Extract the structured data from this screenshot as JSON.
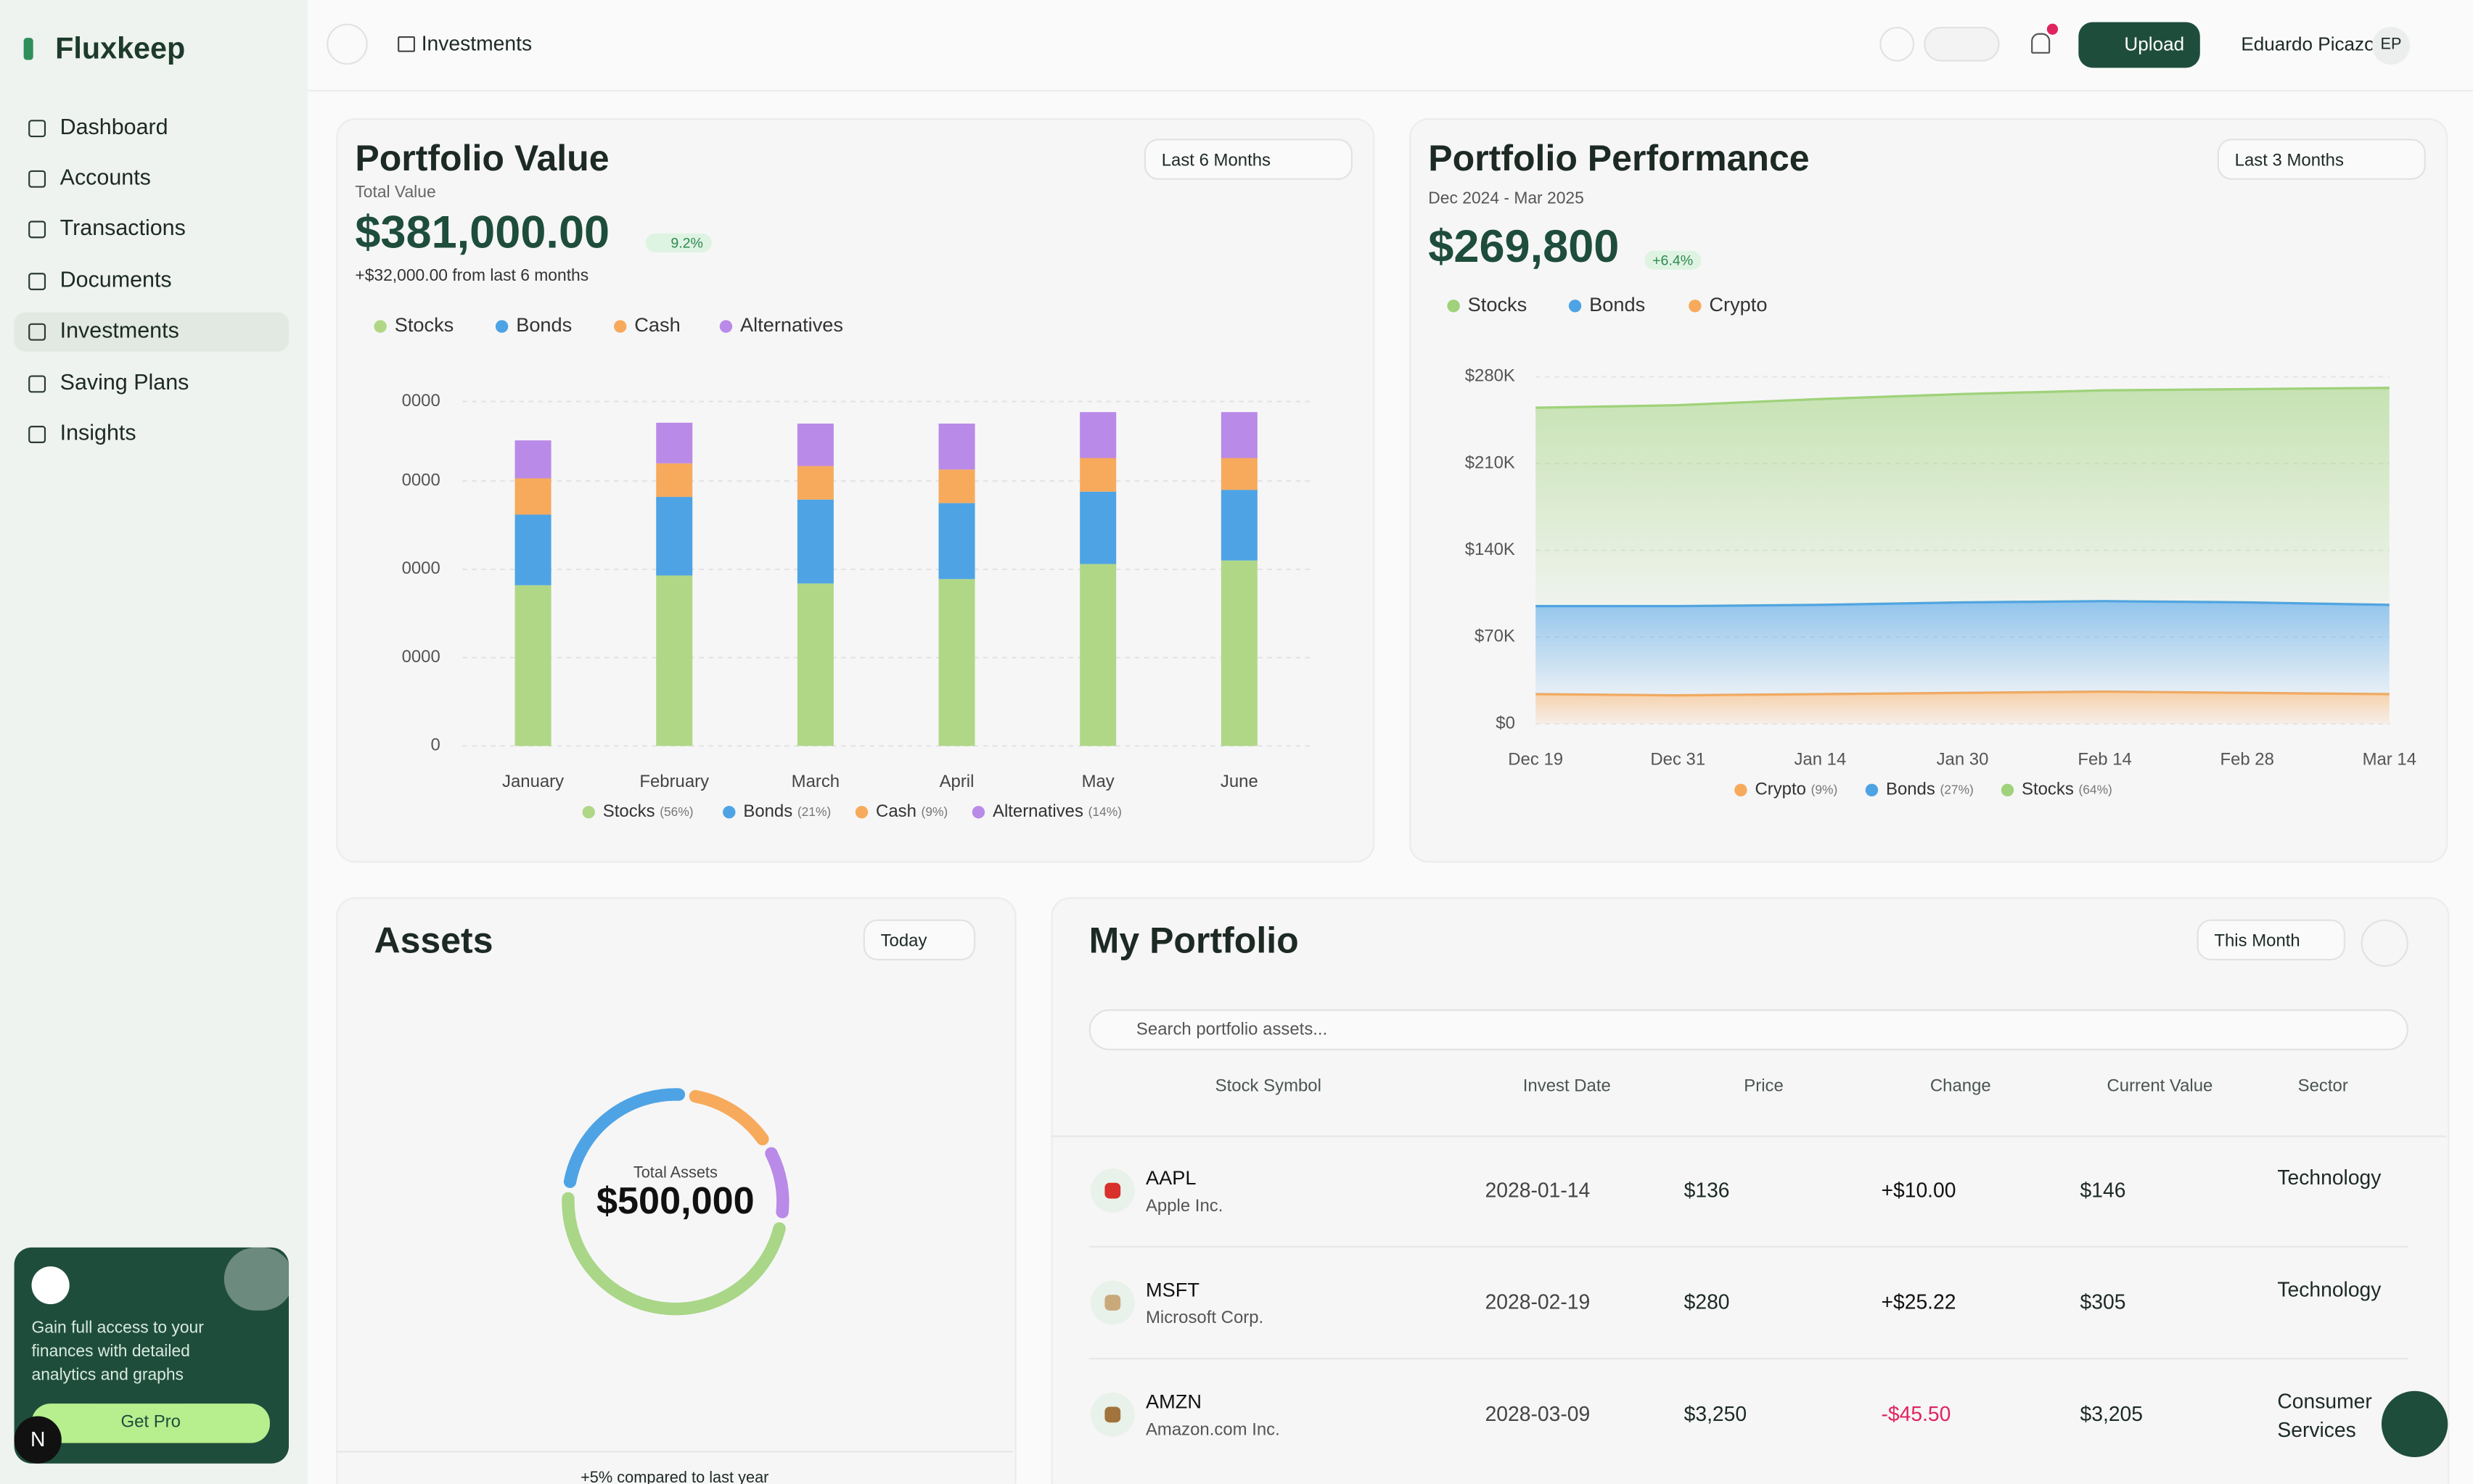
{
  "sidebar": {
    "brand": "Fluxkeep",
    "nav": [
      "Dashboard",
      "Accounts",
      "Transactions",
      "Documents",
      "Investments",
      "Saving Plans",
      "Insights"
    ],
    "promo": {
      "text": "Gain full access to your finances with detailed analytics and graphs",
      "button": "Get Pro"
    },
    "badge": "N"
  },
  "topbar": {
    "breadcrumb": "Investments",
    "upload": "Upload",
    "user": "Eduardo Picazo",
    "initials": "EP"
  },
  "portfolio_value": {
    "title": "Portfolio Value",
    "subtitle": "Total Value",
    "total": "$381,000.00",
    "change": "9.2%",
    "note": "+$32,000.00 from last 6 months",
    "range": "Last 6 Months",
    "chart": {
      "type": "bar",
      "stacked": true,
      "categories": [
        "January",
        "February",
        "March",
        "April",
        "May",
        "June"
      ],
      "series": [
        {
          "name": "Stocks",
          "share_label": "(56%)",
          "color": "#b0d786",
          "values": [
            91000,
            96500,
            92000,
            94500,
            103000,
            105000
          ]
        },
        {
          "name": "Bonds",
          "share_label": "(21%)",
          "color": "#4ea3e4",
          "values": [
            40000,
            44500,
            47500,
            43000,
            41000,
            40000
          ]
        },
        {
          "name": "Cash",
          "share_label": "(9%)",
          "color": "#f7aa5c",
          "values": [
            20500,
            19000,
            19000,
            19000,
            19000,
            18000
          ]
        },
        {
          "name": "Alternatives",
          "share_label": "(14%)",
          "color": "#b98ae8",
          "values": [
            21500,
            23000,
            24000,
            26000,
            26000,
            26000
          ]
        }
      ],
      "ylim": [
        0,
        200000
      ],
      "yticks": [
        0,
        {
          "value": 50000,
          "label": "0000"
        },
        {
          "value": 100000,
          "label": "0000"
        },
        {
          "value": 150000,
          "label": "0000"
        },
        {
          "value": 195000,
          "label": "0000"
        }
      ],
      "grid": true
    }
  },
  "portfolio_performance": {
    "title": "Portfolio Performance",
    "period": "Dec 2024 - Mar 2025",
    "total": "$269,800",
    "change": "+6.4%",
    "range": "Last 3 Months",
    "chart": {
      "type": "area",
      "stacked": true,
      "x": [
        "Dec 19",
        "Dec 31",
        "Jan 14",
        "Jan 30",
        "Feb 14",
        "Feb 28",
        "Mar 14"
      ],
      "series": [
        {
          "name": "Stocks",
          "share_label": "(64%)",
          "color": "#9fd27a",
          "values": [
            160000,
            162000,
            166000,
            168000,
            170000,
            172000,
            175000
          ]
        },
        {
          "name": "Bonds",
          "share_label": "(27%)",
          "color": "#4ea3e4",
          "values": [
            71000,
            72000,
            72000,
            73000,
            73000,
            73000,
            72000
          ]
        },
        {
          "name": "Crypto",
          "share_label": "(9%)",
          "color": "#f7aa5c",
          "values": [
            24000,
            23000,
            24000,
            25000,
            26000,
            25000,
            24000
          ]
        }
      ],
      "ylim": [
        0,
        290000
      ],
      "yticks": [
        {
          "value": 0,
          "label": "$0"
        },
        {
          "value": 70000,
          "label": "$70K"
        },
        {
          "value": 140000,
          "label": "$140K"
        },
        {
          "value": 210000,
          "label": "$210K"
        },
        {
          "value": 280000,
          "label": "$280K"
        }
      ],
      "grid": true
    }
  },
  "assets": {
    "title": "Assets",
    "range": "Today",
    "center_label": "Total Assets",
    "total": "$500,000",
    "footnote": "+5% compared to last year",
    "chart": {
      "type": "pie",
      "donut": true,
      "values": [
        47,
        24,
        14,
        11
      ],
      "colors": [
        "#a9d687",
        "#4ea3e4",
        "#f7aa5c",
        "#b98ae8"
      ]
    }
  },
  "my_portfolio": {
    "title": "My Portfolio",
    "range": "This Month",
    "search": "Search portfolio assets...",
    "columns": [
      "Stock Symbol",
      "Invest Date",
      "Price",
      "Change",
      "Current Value",
      "Sector"
    ],
    "rows": [
      {
        "symbol": "AAPL",
        "company": "Apple Inc.",
        "date": "2028-01-14",
        "price": "$136",
        "change": "+$10.00",
        "value": "$146",
        "sector": "Technology"
      },
      {
        "symbol": "MSFT",
        "company": "Microsoft Corp.",
        "date": "2028-02-19",
        "price": "$280",
        "change": "+$25.22",
        "value": "$305",
        "sector": "Technology"
      },
      {
        "symbol": "AMZN",
        "company": "Amazon.com Inc.",
        "date": "2028-03-09",
        "price": "$3,250",
        "change": "-$45.50",
        "value": "$3,205",
        "sector": "Consumer Services"
      }
    ]
  }
}
